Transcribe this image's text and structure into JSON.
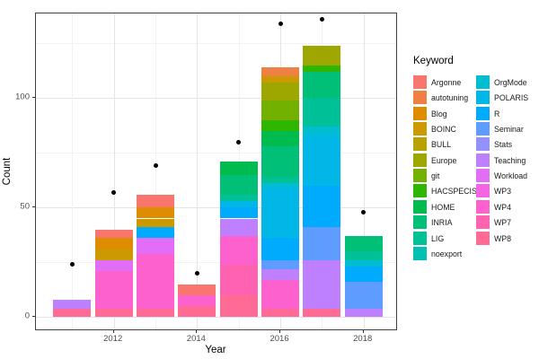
{
  "x_axis": {
    "title": "Year",
    "tick_labels": [
      "2012",
      "2014",
      "2016",
      "2018"
    ],
    "tick_years": [
      2012,
      2014,
      2016,
      2018
    ],
    "minor_years": [
      2011,
      2013,
      2015,
      2017
    ]
  },
  "y_axis": {
    "title": "Count",
    "tick_labels": [
      "0",
      "50",
      "100"
    ],
    "tick_values": [
      0,
      50,
      100
    ],
    "minor_values": [
      25,
      75,
      125
    ]
  },
  "legend": {
    "title": "Keyword"
  },
  "keywords": [
    {
      "name": "Argonne",
      "color": "#F8766D"
    },
    {
      "name": "autotuning",
      "color": "#EE8043"
    },
    {
      "name": "Blog",
      "color": "#DE8C00"
    },
    {
      "name": "BOINC",
      "color": "#CC9900"
    },
    {
      "name": "BULL",
      "color": "#B9A100"
    },
    {
      "name": "Europe",
      "color": "#9DA700"
    },
    {
      "name": "git",
      "color": "#74B000"
    },
    {
      "name": "HACSPECIS",
      "color": "#2FB600"
    },
    {
      "name": "HOME",
      "color": "#00BB4E"
    },
    {
      "name": "INRIA",
      "color": "#00BF76"
    },
    {
      "name": "LIG",
      "color": "#00C098"
    },
    {
      "name": "noexport",
      "color": "#00C0B4"
    },
    {
      "name": "OrgMode",
      "color": "#00BDD2"
    },
    {
      "name": "POLARIS",
      "color": "#00B7E8"
    },
    {
      "name": "R",
      "color": "#00ABFD"
    },
    {
      "name": "Seminar",
      "color": "#5E9DFF"
    },
    {
      "name": "Stats",
      "color": "#9590FF"
    },
    {
      "name": "Teaching",
      "color": "#BF80FF"
    },
    {
      "name": "Workload",
      "color": "#E26EF7"
    },
    {
      "name": "WP3",
      "color": "#F464E5"
    },
    {
      "name": "WP4",
      "color": "#FC61CD"
    },
    {
      "name": "WP7",
      "color": "#FF62B0"
    },
    {
      "name": "WP8",
      "color": "#FF6B94"
    }
  ],
  "chart_data": {
    "type": "bar",
    "stacking": "stacked, legend order top-to-bottom",
    "xlabel": "Year",
    "ylabel": "Count",
    "ylim": [
      0,
      139
    ],
    "grid": "on",
    "legend_position": "right",
    "bars": [
      {
        "year": 2011,
        "total": 8,
        "segments": [
          [
            "Teaching",
            4
          ],
          [
            "WP8",
            4
          ]
        ]
      },
      {
        "year": 2012,
        "total": 40,
        "segments": [
          [
            "Argonne",
            4
          ],
          [
            "Blog",
            5
          ],
          [
            "BOINC",
            5
          ],
          [
            "Workload",
            5
          ],
          [
            "WP4",
            17
          ],
          [
            "WP8",
            4
          ]
        ]
      },
      {
        "year": 2013,
        "total": 56,
        "segments": [
          [
            "Argonne",
            6
          ],
          [
            "Blog",
            5
          ],
          [
            "BOINC",
            4
          ],
          [
            "R",
            5
          ],
          [
            "Workload",
            7
          ],
          [
            "WP4",
            25
          ],
          [
            "WP8",
            4
          ]
        ]
      },
      {
        "year": 2014,
        "total": 15,
        "segments": [
          [
            "Argonne",
            5
          ],
          [
            "WP4",
            5
          ],
          [
            "WP8",
            5
          ]
        ]
      },
      {
        "year": 2015,
        "total": 71,
        "segments": [
          [
            "HOME",
            6
          ],
          [
            "INRIA",
            9
          ],
          [
            "LIG",
            3
          ],
          [
            "POLARIS",
            3
          ],
          [
            "R",
            5
          ],
          [
            "Teaching",
            8
          ],
          [
            "WP4",
            13
          ],
          [
            "WP7",
            14
          ],
          [
            "WP8",
            10
          ]
        ]
      },
      {
        "year": 2016,
        "total": 114,
        "segments": [
          [
            "autotuning",
            4
          ],
          [
            "BOINC",
            3
          ],
          [
            "Europe",
            8
          ],
          [
            "git",
            9
          ],
          [
            "HACSPECIS",
            5
          ],
          [
            "HOME",
            7
          ],
          [
            "INRIA",
            14
          ],
          [
            "LIG",
            3
          ],
          [
            "OrgMode",
            2
          ],
          [
            "POLARIS",
            23
          ],
          [
            "R",
            10
          ],
          [
            "Seminar",
            4
          ],
          [
            "Teaching",
            5
          ],
          [
            "WP4",
            13
          ],
          [
            "WP8",
            4
          ]
        ]
      },
      {
        "year": 2017,
        "total": 124,
        "segments": [
          [
            "Europe",
            9
          ],
          [
            "HACSPECIS",
            3
          ],
          [
            "INRIA",
            12
          ],
          [
            "LIG",
            13
          ],
          [
            "OrgMode",
            4
          ],
          [
            "POLARIS",
            23
          ],
          [
            "R",
            19
          ],
          [
            "Seminar",
            15
          ],
          [
            "Teaching",
            22
          ],
          [
            "WP8",
            4
          ]
        ]
      },
      {
        "year": 2018,
        "total": 37,
        "segments": [
          [
            "INRIA",
            7
          ],
          [
            "LIG",
            4
          ],
          [
            "OrgMode",
            3
          ],
          [
            "R",
            7
          ],
          [
            "Seminar",
            12
          ],
          [
            "Teaching",
            4
          ]
        ]
      }
    ],
    "points": [
      {
        "year": 2011,
        "count": 24
      },
      {
        "year": 2012,
        "count": 57
      },
      {
        "year": 2013,
        "count": 69
      },
      {
        "year": 2014,
        "count": 20
      },
      {
        "year": 2015,
        "count": 80
      },
      {
        "year": 2016,
        "count": 134
      },
      {
        "year": 2017,
        "count": 136
      },
      {
        "year": 2018,
        "count": 48
      }
    ]
  }
}
